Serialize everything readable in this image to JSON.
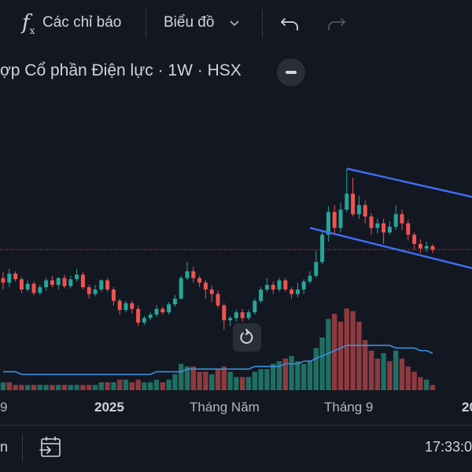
{
  "toolbar": {
    "indicators_icon": "fx-icon",
    "indicators_label": "Các chỉ báo",
    "chart_type_label": "Biểu đồ",
    "undo_icon": "undo-icon",
    "redo_icon": "redo-icon"
  },
  "symbol": {
    "title": "ợp Cổ phần Điện lực · 1W · HSX"
  },
  "x_axis": {
    "labels": [
      "9",
      "2025",
      "Tháng Năm",
      "Tháng 9",
      "20"
    ]
  },
  "bottom_bar": {
    "left_text": "n",
    "goto_icon": "calendar-goto-icon",
    "clock": "17:33:0"
  },
  "colors": {
    "up": "#26a69a",
    "down": "#ef5350",
    "volume_up": "#1f6f63",
    "volume_down": "#8e3a3f",
    "ma_line": "#3d8fe0",
    "trendline": "#3f6ef5",
    "price_line": "#ef5350"
  },
  "chart_data": {
    "type": "candlestick",
    "candles": [
      [
        3.0,
        2.6,
        3.5,
        2.0
      ],
      [
        2.6,
        3.4,
        3.8,
        2.2
      ],
      [
        3.4,
        2.9,
        3.6,
        2.7
      ],
      [
        2.9,
        2.0,
        3.1,
        1.7
      ],
      [
        2.0,
        2.5,
        2.8,
        1.8
      ],
      [
        2.5,
        1.7,
        2.7,
        1.5
      ],
      [
        1.7,
        2.2,
        2.4,
        1.5
      ],
      [
        2.2,
        2.8,
        3.0,
        1.9
      ],
      [
        2.8,
        2.4,
        3.2,
        2.2
      ],
      [
        2.4,
        3.0,
        3.1,
        2.0
      ],
      [
        3.0,
        2.3,
        3.3,
        2.1
      ],
      [
        2.3,
        2.9,
        3.2,
        2.1
      ],
      [
        2.9,
        3.3,
        3.8,
        2.7
      ],
      [
        3.3,
        2.2,
        3.5,
        2.0
      ],
      [
        2.2,
        1.6,
        2.4,
        1.2
      ],
      [
        1.6,
        2.0,
        2.4,
        1.4
      ],
      [
        2.0,
        2.8,
        2.9,
        1.8
      ],
      [
        2.8,
        2.0,
        3.0,
        1.8
      ],
      [
        2.0,
        1.0,
        2.2,
        0.6
      ],
      [
        1.0,
        0.2,
        1.2,
        -0.2
      ],
      [
        0.2,
        0.8,
        1.0,
        0.0
      ],
      [
        0.8,
        0.3,
        1.0,
        -0.1
      ],
      [
        0.3,
        -0.9,
        0.6,
        -1.2
      ],
      [
        -0.9,
        -0.5,
        -0.3,
        -1.1
      ],
      [
        -0.5,
        -0.2,
        0.0,
        -0.7
      ],
      [
        -0.2,
        0.3,
        0.6,
        -0.4
      ],
      [
        0.3,
        0.0,
        0.5,
        -0.2
      ],
      [
        0.0,
        0.7,
        0.9,
        -0.2
      ],
      [
        0.7,
        1.2,
        1.5,
        0.5
      ],
      [
        1.2,
        3.0,
        3.2,
        1.1
      ],
      [
        3.0,
        3.6,
        4.4,
        2.8
      ],
      [
        3.6,
        3.0,
        4.0,
        2.6
      ],
      [
        3.0,
        2.6,
        3.2,
        2.2
      ],
      [
        2.6,
        2.0,
        2.8,
        1.2
      ],
      [
        2.0,
        1.6,
        2.3,
        0.9
      ],
      [
        1.6,
        0.6,
        1.9,
        0.4
      ],
      [
        0.6,
        -0.7,
        0.8,
        -1.5
      ],
      [
        -0.7,
        -0.5,
        -0.3,
        -1.2
      ],
      [
        -0.5,
        0.0,
        0.2,
        -0.8
      ],
      [
        0.0,
        -0.5,
        0.3,
        -0.8
      ],
      [
        -0.5,
        0.0,
        0.2,
        -0.7
      ],
      [
        0.0,
        1.0,
        1.2,
        -0.2
      ],
      [
        1.0,
        2.0,
        2.2,
        0.8
      ],
      [
        2.0,
        2.4,
        3.0,
        1.8
      ],
      [
        2.4,
        2.0,
        2.7,
        1.6
      ],
      [
        2.0,
        2.8,
        3.0,
        1.8
      ],
      [
        2.8,
        2.0,
        3.0,
        1.8
      ],
      [
        2.0,
        1.6,
        2.2,
        1.2
      ],
      [
        1.6,
        2.0,
        2.6,
        1.3
      ],
      [
        2.0,
        2.7,
        2.9,
        1.6
      ],
      [
        2.7,
        3.2,
        3.6,
        2.5
      ],
      [
        3.2,
        4.4,
        5.4,
        3.0
      ],
      [
        4.4,
        6.8,
        7.2,
        4.2
      ],
      [
        6.8,
        8.8,
        9.3,
        6.2
      ],
      [
        8.8,
        7.4,
        9.4,
        6.9
      ],
      [
        7.4,
        9.0,
        9.6,
        7.0
      ],
      [
        9.0,
        10.4,
        12.6,
        8.8
      ],
      [
        10.4,
        8.6,
        11.8,
        8.4
      ],
      [
        8.6,
        9.4,
        10.2,
        8.2
      ],
      [
        9.4,
        8.4,
        9.8,
        7.8
      ],
      [
        8.4,
        7.4,
        8.7,
        6.8
      ],
      [
        7.4,
        7.8,
        8.2,
        6.9
      ],
      [
        7.8,
        7.0,
        8.2,
        6.0
      ],
      [
        7.0,
        7.5,
        8.0,
        6.8
      ],
      [
        7.5,
        8.6,
        9.4,
        7.2
      ],
      [
        8.6,
        7.8,
        9.0,
        7.2
      ],
      [
        7.8,
        6.8,
        8.1,
        6.3
      ],
      [
        6.8,
        6.0,
        7.0,
        5.5
      ],
      [
        6.0,
        5.6,
        6.4,
        5.2
      ],
      [
        5.6,
        5.8,
        6.2,
        5.3
      ],
      [
        5.8,
        5.5,
        6.0,
        5.2
      ]
    ],
    "volume": [
      [
        3,
        1
      ],
      [
        3,
        0
      ],
      [
        2,
        0
      ],
      [
        2,
        0
      ],
      [
        2,
        1
      ],
      [
        2,
        0
      ],
      [
        2,
        1
      ],
      [
        2,
        1
      ],
      [
        2,
        0
      ],
      [
        2,
        1
      ],
      [
        2,
        0
      ],
      [
        2,
        1
      ],
      [
        2,
        1
      ],
      [
        2,
        0
      ],
      [
        2,
        0
      ],
      [
        2,
        1
      ],
      [
        3,
        1
      ],
      [
        3,
        0
      ],
      [
        3,
        1
      ],
      [
        4,
        0
      ],
      [
        4,
        1
      ],
      [
        3,
        0
      ],
      [
        4,
        0
      ],
      [
        3,
        1
      ],
      [
        3,
        1
      ],
      [
        4,
        1
      ],
      [
        3,
        0
      ],
      [
        4,
        1
      ],
      [
        6,
        1
      ],
      [
        10,
        1
      ],
      [
        9,
        1
      ],
      [
        9,
        0
      ],
      [
        7,
        0
      ],
      [
        7,
        0
      ],
      [
        6,
        1
      ],
      [
        8,
        0
      ],
      [
        9,
        0
      ],
      [
        7,
        1
      ],
      [
        5,
        1
      ],
      [
        5,
        0
      ],
      [
        5,
        1
      ],
      [
        7,
        1
      ],
      [
        8,
        1
      ],
      [
        8,
        1
      ],
      [
        10,
        1
      ],
      [
        11,
        1
      ],
      [
        12,
        0
      ],
      [
        13,
        1
      ],
      [
        11,
        1
      ],
      [
        10,
        1
      ],
      [
        11,
        1
      ],
      [
        16,
        1
      ],
      [
        20,
        1
      ],
      [
        27,
        1
      ],
      [
        29,
        0
      ],
      [
        26,
        0
      ],
      [
        31,
        0
      ],
      [
        30,
        0
      ],
      [
        26,
        0
      ],
      [
        19,
        0
      ],
      [
        15,
        0
      ],
      [
        12,
        0
      ],
      [
        14,
        1
      ],
      [
        11,
        0
      ],
      [
        15,
        1
      ],
      [
        12,
        0
      ],
      [
        9,
        0
      ],
      [
        7,
        0
      ],
      [
        5,
        0
      ],
      [
        4,
        1
      ],
      [
        2,
        0
      ]
    ],
    "volume_ma": [
      7,
      7,
      7,
      6,
      6,
      6,
      6,
      6,
      6,
      6,
      6,
      6,
      6,
      6,
      6,
      6,
      6,
      6,
      6,
      6,
      6,
      6,
      6,
      6,
      6,
      7,
      7,
      7,
      7,
      7,
      8,
      8,
      8,
      8,
      8,
      8,
      8,
      8,
      8,
      8,
      8,
      9,
      9,
      9,
      9,
      9,
      10,
      10,
      10,
      11,
      11,
      12,
      13,
      14,
      15,
      16,
      17,
      17,
      17,
      17,
      17,
      17,
      17,
      17,
      16,
      16,
      16,
      16,
      15,
      15,
      14
    ],
    "price_line": 5.5,
    "trendlines": [
      [
        [
          56,
          12.6
        ],
        [
          78,
          5.2
        ]
      ],
      [
        [
          50,
          7.4
        ],
        [
          78,
          1.8
        ]
      ]
    ]
  }
}
